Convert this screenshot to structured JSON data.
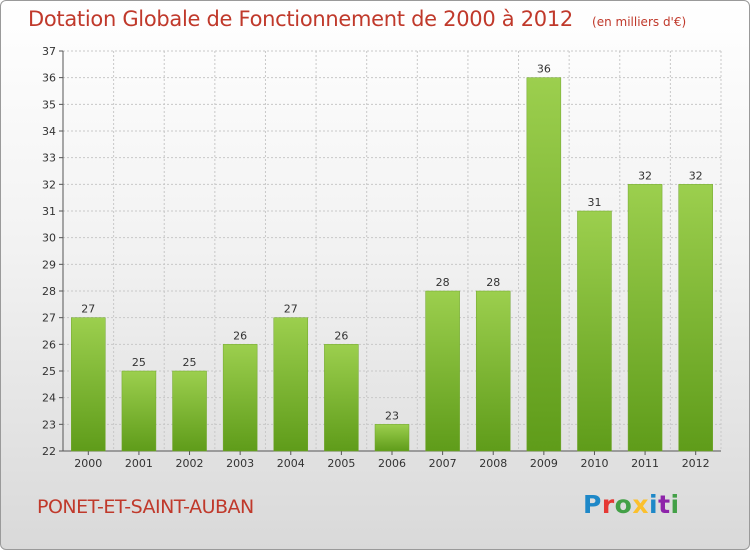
{
  "header": {
    "title": "Dotation Globale de Fonctionnement de 2000 à 2012",
    "unit": "(en milliers d'€)"
  },
  "footer": {
    "commune": "PONET-ET-SAINT-AUBAN",
    "logo": "Proxiti",
    "logo_colors": [
      "#1e88c8",
      "#e53935",
      "#43a047",
      "#fbc02d",
      "#1e88c8",
      "#8e24aa",
      "#43a047"
    ]
  },
  "chart_data": {
    "type": "bar",
    "categories": [
      "2000",
      "2001",
      "2002",
      "2003",
      "2004",
      "2005",
      "2006",
      "2007",
      "2008",
      "2009",
      "2010",
      "2011",
      "2012"
    ],
    "values": [
      27,
      25,
      25,
      26,
      27,
      26,
      23,
      28,
      28,
      36,
      31,
      32,
      32
    ],
    "ylim": [
      22,
      37
    ],
    "yticks": [
      22,
      23,
      24,
      25,
      26,
      27,
      28,
      29,
      30,
      31,
      32,
      33,
      34,
      35,
      36,
      37
    ],
    "grid": true,
    "bar_color_top": "#9ccf4e",
    "bar_color_bottom": "#5f9c1a"
  }
}
